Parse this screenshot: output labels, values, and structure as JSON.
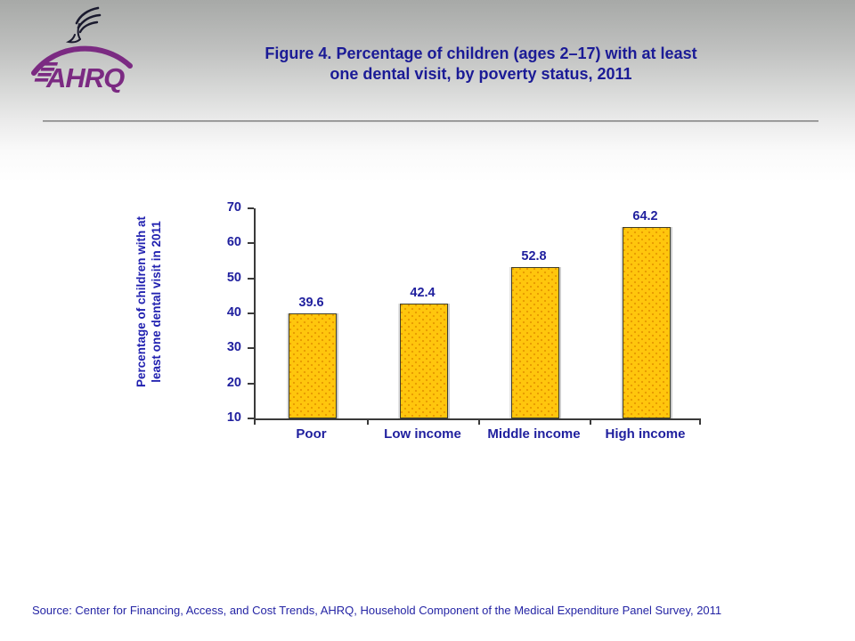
{
  "slide": {
    "background_top_color": "#a7a9a7"
  },
  "header": {
    "logo": {
      "wordmark_text": "AHRQ",
      "brand_color": "#7b2a82",
      "eagle_color": "#1a1a2e"
    },
    "title_line1": "Figure 4. Percentage of children (ages 2–17) with at least",
    "title_line2": "one dental visit, by poverty status, 2011",
    "title_color": "#1b1b96"
  },
  "chart_data": {
    "type": "bar",
    "title": "Figure 4. Percentage of children (ages 2–17) with at least one dental visit, by poverty status, 2011",
    "categories": [
      "Poor",
      "Low income",
      "Middle income",
      "High income"
    ],
    "values": [
      39.6,
      42.4,
      52.8,
      64.2
    ],
    "value_labels": [
      "39.6",
      "42.4",
      "52.8",
      "64.2"
    ],
    "xlabel": "",
    "ylabel": "Percentage of children with at least one dental visit in 2011",
    "ylabel_lines": [
      "Percentage of children with at",
      "least one dental visit in 2011"
    ],
    "ylim": [
      10,
      70
    ],
    "yticks": [
      10,
      20,
      30,
      40,
      50,
      60,
      70
    ],
    "grid": false,
    "legend": null,
    "colors": {
      "bar_fill": "#ffc60d",
      "bar_dots": "#e89b00",
      "bar_border": "#403f2a",
      "axis": "#3a3a3a",
      "tick_label": "#1f1f9e",
      "value_label": "#1f1f9e",
      "category_label": "#1f1f9e",
      "ylabel_color": "#2121b0"
    }
  },
  "footer": {
    "source": "Source: Center for Financing, Access, and Cost Trends, AHRQ, Household Component of the Medical Expenditure Panel Survey, 2011",
    "source_color": "#2525a5"
  }
}
